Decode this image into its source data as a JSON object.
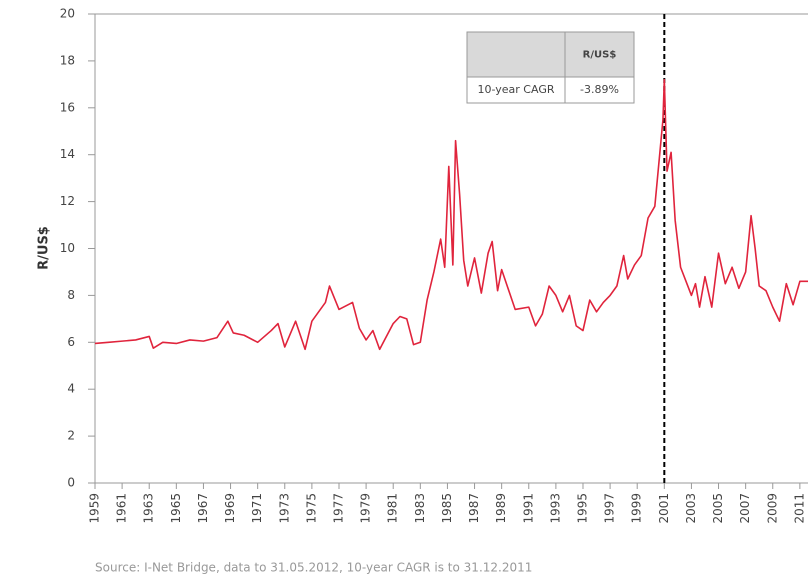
{
  "chart_data": {
    "type": "line",
    "y_label": "R/US$",
    "source": "Source: I-Net Bridge, data to 31.05.2012, 10-year CAGR is to 31.12.2011",
    "x": [
      1959,
      1960,
      1961,
      1962,
      1963,
      1963.3,
      1964,
      1965,
      1966,
      1967,
      1968,
      1968.8,
      1969.2,
      1970,
      1971,
      1972,
      1972.5,
      1973,
      1973.8,
      1974.5,
      1975,
      1976,
      1976.3,
      1977,
      1978,
      1978.5,
      1979,
      1979.5,
      1980,
      1981,
      1981.5,
      1982,
      1982.5,
      1983,
      1983.5,
      1984,
      1984.5,
      1984.8,
      1985.1,
      1985.4,
      1985.6,
      1985.9,
      1986.2,
      1986.5,
      1987,
      1987.5,
      1988,
      1988.3,
      1988.7,
      1989,
      1990,
      1991,
      1991.5,
      1992,
      1992.5,
      1993,
      1993.5,
      1994,
      1994.5,
      1995,
      1995.5,
      1996,
      1996.5,
      1997,
      1997.5,
      1998,
      1998.3,
      1998.8,
      1999.3,
      1999.8,
      2000.3,
      2000.9,
      2001,
      2001.2,
      2001.5,
      2001.8,
      2002.2,
      2002.6,
      2003,
      2003.3,
      2003.6,
      2004,
      2004.5,
      2005,
      2005.5,
      2006,
      2006.5,
      2007,
      2007.4,
      2007.7,
      2008,
      2008.5,
      2009,
      2009.5,
      2010,
      2010.5,
      2011,
      2011.6
    ],
    "series": [
      {
        "name": "R/US$",
        "color": "#e0243c",
        "values": [
          5.95,
          6.0,
          6.05,
          6.1,
          6.25,
          5.75,
          6.0,
          5.95,
          6.1,
          6.05,
          6.2,
          6.9,
          6.4,
          6.3,
          6.0,
          6.5,
          6.8,
          5.8,
          6.9,
          5.7,
          6.9,
          7.7,
          8.4,
          7.4,
          7.7,
          6.6,
          6.1,
          6.5,
          5.7,
          6.8,
          7.1,
          7.0,
          5.9,
          6.0,
          7.8,
          9.0,
          10.4,
          9.2,
          13.5,
          9.3,
          14.6,
          12.3,
          9.5,
          8.4,
          9.6,
          8.1,
          9.8,
          10.3,
          8.2,
          9.1,
          7.4,
          7.5,
          6.7,
          7.2,
          8.4,
          8.0,
          7.3,
          8.0,
          6.7,
          6.5,
          7.8,
          7.3,
          7.7,
          8.0,
          8.4,
          9.7,
          8.7,
          9.3,
          9.7,
          11.3,
          11.8,
          15.5,
          17.2,
          13.3,
          14.1,
          11.2,
          9.2,
          8.6,
          8.0,
          8.5,
          7.5,
          8.8,
          7.5,
          9.8,
          8.5,
          9.2,
          8.3,
          9.0,
          11.4,
          10.0,
          8.4,
          8.2,
          7.5,
          6.9,
          8.5,
          7.6,
          8.6,
          8.6
        ]
      }
    ],
    "xlim": [
      1959,
      2011.6
    ],
    "xticks": [
      1959,
      1961,
      1963,
      1965,
      1967,
      1969,
      1971,
      1973,
      1975,
      1977,
      1979,
      1981,
      1983,
      1985,
      1987,
      1989,
      1991,
      1993,
      1995,
      1997,
      1999,
      2001,
      2003,
      2005,
      2007,
      2009,
      2011
    ],
    "ylim": [
      0,
      20
    ],
    "yticks": [
      0,
      2,
      4,
      6,
      8,
      10,
      12,
      14,
      16,
      18,
      20
    ],
    "vline": 2001,
    "table": {
      "header": [
        "",
        "R/US$"
      ],
      "rows": [
        [
          "10-year CAGR",
          "-3.89%"
        ]
      ]
    }
  }
}
